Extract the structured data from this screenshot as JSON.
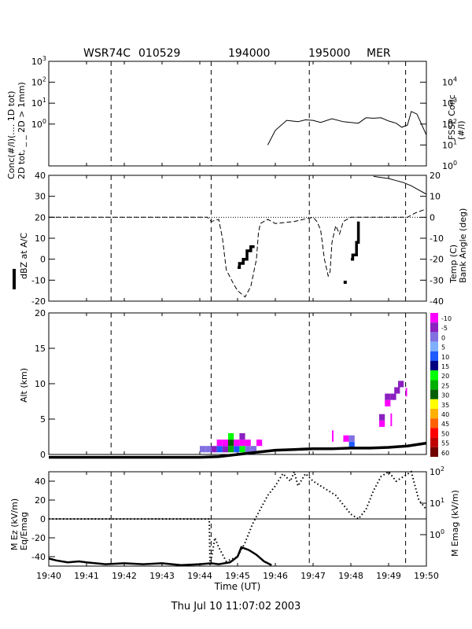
{
  "header": {
    "flight": "WSR74C",
    "date": "010529",
    "start_time": "194000",
    "end_time": "195000",
    "location": "MER"
  },
  "footer": {
    "timestamp": "Thu Jul 10 11:07:02 2003"
  },
  "colors": {
    "stroke": "#000000",
    "temp_line": "#000000"
  },
  "chart_data": [
    {
      "id": "concentration",
      "type": "line",
      "title": "",
      "ylabel_left": [
        "Conc(#/l)(.... 1D tot)",
        "2D tot, _ _ 2D > 1mm)"
      ],
      "ylabel_right": [
        "FSSP Conc",
        "(#/l)"
      ],
      "x_range": [
        0,
        10
      ],
      "y_left": {
        "scale": "log",
        "range": [
          0.01,
          1000
        ],
        "ticks": [
          "10^3",
          "10^2",
          "10^1",
          "10^0"
        ],
        "tick_values": [
          1000,
          100,
          10,
          1
        ]
      },
      "y_right": {
        "scale": "log",
        "range": [
          1,
          100000
        ],
        "ticks": [
          "10^4",
          "10^3",
          "10^2",
          "10^1",
          "10^0"
        ],
        "tick_values": [
          10000,
          1000,
          100,
          10,
          1
        ]
      },
      "series": [
        {
          "axis": "right",
          "x": [
            5.8,
            6.0,
            6.3,
            6.6,
            6.8,
            7.0,
            7.2,
            7.5,
            7.8,
            8.0,
            8.2,
            8.4,
            8.6,
            8.8,
            9.0,
            9.2,
            9.35,
            9.5,
            9.6,
            9.75,
            9.85,
            10.0
          ],
          "y": [
            10,
            50,
            150,
            130,
            160,
            150,
            120,
            180,
            130,
            120,
            110,
            200,
            190,
            200,
            140,
            110,
            70,
            90,
            400,
            300,
            120,
            30
          ]
        }
      ]
    },
    {
      "id": "dbz_temp",
      "type": "line",
      "ylabel_left": "dBZ at A/C",
      "ylabel_right": [
        "Temp (C)",
        "Bank Angle (deg)"
      ],
      "x_range": [
        0,
        10
      ],
      "y_left": {
        "range": [
          -20,
          40
        ],
        "ticks": [
          "40",
          "30",
          "20",
          "10",
          "0",
          "-10",
          "-20"
        ],
        "tick_values": [
          40,
          30,
          20,
          10,
          0,
          -10,
          -20
        ]
      },
      "y_right": {
        "range": [
          -40,
          20
        ],
        "ticks": [
          "20",
          "10",
          "0",
          "-10",
          "-20",
          "-30",
          "-40"
        ],
        "tick_values": [
          20,
          10,
          0,
          -10,
          -20,
          -30,
          -40
        ]
      },
      "temp": {
        "x": [
          8.6,
          8.8,
          9.0,
          9.2,
          9.4,
          9.6,
          9.8,
          10.0
        ],
        "y": [
          19.5,
          19.0,
          18.5,
          17.5,
          16.5,
          15.0,
          13.0,
          11.0
        ]
      },
      "bank_angle": {
        "x": [
          0,
          4.2,
          4.3,
          4.5,
          4.6,
          4.7,
          4.9,
          5.0,
          5.2,
          5.35,
          5.5,
          5.55,
          5.6,
          5.8,
          6.0,
          6.5,
          7.0,
          7.1,
          7.2,
          7.3,
          7.4,
          7.45,
          7.5,
          7.6,
          7.7,
          7.8,
          8.0,
          8.5,
          9.0,
          9.5,
          9.7,
          10.0
        ],
        "y": [
          0,
          0,
          -2,
          -1,
          -10,
          -25,
          -32,
          -35,
          -38,
          -33,
          -20,
          -8,
          -3,
          -1,
          -3,
          -2,
          0,
          -2,
          -6,
          -20,
          -28,
          -26,
          -12,
          -4,
          -8,
          -2,
          0,
          0,
          0,
          0,
          2,
          4
        ]
      },
      "dbz_segments": [
        {
          "x": [
            5.0,
            5.05,
            5.05,
            5.15,
            5.15,
            5.25,
            5.25,
            5.35,
            5.35,
            5.45
          ],
          "y": [
            -4,
            -4,
            -2,
            -2,
            0,
            0,
            4,
            4,
            6,
            6
          ]
        },
        {
          "x": [
            8.0,
            8.05,
            8.05,
            8.15,
            8.15,
            8.2,
            8.2
          ],
          "y": [
            0,
            0,
            2,
            2,
            8,
            8,
            18
          ]
        }
      ],
      "dbz_dots": [
        {
          "x": 7.85,
          "y": -11
        }
      ]
    },
    {
      "id": "altitude",
      "type": "heatmap",
      "ylabel": "Alt (km)",
      "x_range": [
        0,
        10
      ],
      "y_range": [
        0,
        20
      ],
      "y_ticks": [
        0,
        5,
        10,
        15,
        20
      ],
      "colorbar": {
        "labels": [
          "-10",
          "-5",
          "0",
          "5",
          "10",
          "15",
          "20",
          "25",
          "30",
          "35",
          "40",
          "45",
          "50",
          "55",
          "60"
        ],
        "colors": [
          "#ff00ff",
          "#8a20c0",
          "#8070e0",
          "#7fb0ff",
          "#1e5aff",
          "#000080",
          "#00ff00",
          "#00b000",
          "#006000",
          "#ffff00",
          "#ffb000",
          "#ff6000",
          "#ff0000",
          "#c00000",
          "#700000"
        ]
      },
      "cells": [
        {
          "x": 4.0,
          "y": 0.3,
          "w": 0.15,
          "h": 0.9,
          "c": "#8070e0"
        },
        {
          "x": 4.15,
          "y": 0.3,
          "w": 0.15,
          "h": 0.9,
          "c": "#8070e0"
        },
        {
          "x": 4.3,
          "y": 0.3,
          "w": 0.15,
          "h": 0.9,
          "c": "#8a20c0"
        },
        {
          "x": 4.45,
          "y": 0.3,
          "w": 0.15,
          "h": 0.9,
          "c": "#1e5aff"
        },
        {
          "x": 4.6,
          "y": 0.3,
          "w": 0.15,
          "h": 0.9,
          "c": "#8a20c0"
        },
        {
          "x": 4.75,
          "y": 0.3,
          "w": 0.15,
          "h": 0.9,
          "c": "#00b000"
        },
        {
          "x": 4.9,
          "y": 0.3,
          "w": 0.15,
          "h": 0.9,
          "c": "#1e5aff"
        },
        {
          "x": 5.05,
          "y": 0.3,
          "w": 0.15,
          "h": 0.9,
          "c": "#00ff00"
        },
        {
          "x": 5.2,
          "y": 0.3,
          "w": 0.15,
          "h": 0.9,
          "c": "#8070e0"
        },
        {
          "x": 5.35,
          "y": 0.3,
          "w": 0.15,
          "h": 0.9,
          "c": "#8070e0"
        },
        {
          "x": 4.45,
          "y": 1.2,
          "w": 0.15,
          "h": 0.9,
          "c": "#ff00ff"
        },
        {
          "x": 4.6,
          "y": 1.2,
          "w": 0.15,
          "h": 0.9,
          "c": "#ff00ff"
        },
        {
          "x": 4.75,
          "y": 1.2,
          "w": 0.15,
          "h": 0.9,
          "c": "#006000"
        },
        {
          "x": 4.9,
          "y": 1.2,
          "w": 0.15,
          "h": 0.9,
          "c": "#ff00ff"
        },
        {
          "x": 5.05,
          "y": 1.2,
          "w": 0.15,
          "h": 0.9,
          "c": "#ff00ff"
        },
        {
          "x": 5.2,
          "y": 1.2,
          "w": 0.15,
          "h": 0.9,
          "c": "#ff00ff"
        },
        {
          "x": 5.5,
          "y": 1.2,
          "w": 0.15,
          "h": 0.9,
          "c": "#ff00ff"
        },
        {
          "x": 4.75,
          "y": 2.1,
          "w": 0.15,
          "h": 0.9,
          "c": "#00ff00"
        },
        {
          "x": 5.05,
          "y": 2.1,
          "w": 0.15,
          "h": 0.9,
          "c": "#8a20c0"
        },
        {
          "x": 7.5,
          "y": 1.8,
          "w": 0.04,
          "h": 1.6,
          "c": "#ff00ff"
        },
        {
          "x": 7.95,
          "y": 0.9,
          "w": 0.15,
          "h": 0.9,
          "c": "#1e5aff"
        },
        {
          "x": 7.8,
          "y": 1.8,
          "w": 0.15,
          "h": 0.9,
          "c": "#ff00ff"
        },
        {
          "x": 7.95,
          "y": 1.8,
          "w": 0.15,
          "h": 0.9,
          "c": "#8070e0"
        },
        {
          "x": 8.75,
          "y": 3.9,
          "w": 0.15,
          "h": 0.9,
          "c": "#ff00ff"
        },
        {
          "x": 8.75,
          "y": 4.8,
          "w": 0.15,
          "h": 0.9,
          "c": "#8a20c0"
        },
        {
          "x": 9.05,
          "y": 4.0,
          "w": 0.04,
          "h": 1.8,
          "c": "#ff00ff"
        },
        {
          "x": 8.9,
          "y": 6.8,
          "w": 0.15,
          "h": 0.9,
          "c": "#ff00ff"
        },
        {
          "x": 8.9,
          "y": 7.7,
          "w": 0.15,
          "h": 0.9,
          "c": "#8a20c0"
        },
        {
          "x": 9.05,
          "y": 7.7,
          "w": 0.15,
          "h": 0.9,
          "c": "#8a20c0"
        },
        {
          "x": 9.15,
          "y": 8.6,
          "w": 0.15,
          "h": 0.9,
          "c": "#8a20c0"
        },
        {
          "x": 9.25,
          "y": 9.5,
          "w": 0.15,
          "h": 0.9,
          "c": "#8a20c0"
        },
        {
          "x": 9.45,
          "y": 8.2,
          "w": 0.04,
          "h": 1.2,
          "c": "#ff00ff"
        }
      ],
      "flight_altitude": {
        "x": [
          0,
          4.0,
          4.5,
          5.0,
          5.5,
          6.0,
          6.5,
          7.0,
          7.5,
          8.0,
          8.5,
          9.0,
          9.5,
          10.0
        ],
        "y": [
          -0.4,
          -0.4,
          -0.3,
          0.0,
          0.3,
          0.6,
          0.7,
          0.8,
          0.8,
          0.9,
          0.9,
          1.0,
          1.2,
          1.6
        ]
      }
    },
    {
      "id": "electric_field",
      "type": "line",
      "ylabel_left": [
        "M Ez (kV/m)",
        "Eq/Emag"
      ],
      "ylabel_right": "M Emag (kV/m)",
      "xlabel": "Time (UT)",
      "x_range": [
        0,
        10
      ],
      "x_ticks": [
        "19:40",
        "19:41",
        "19:42",
        "19:43",
        "19:44",
        "19:45",
        "19:46",
        "19:47",
        "19:48",
        "19:49",
        "19:50"
      ],
      "y_left": {
        "range": [
          -50,
          50
        ],
        "ticks": [
          "40",
          "20",
          "0",
          "-20",
          "-40"
        ],
        "tick_values": [
          40,
          20,
          0,
          -20,
          -40
        ]
      },
      "y_right": {
        "scale": "log",
        "range": [
          0.1,
          100
        ],
        "ticks": [
          "10^2",
          "10^1",
          "10^0"
        ],
        "tick_values": [
          100,
          10,
          1
        ]
      },
      "ez": {
        "x": [
          0,
          0.2,
          0.5,
          0.8,
          1.0,
          1.5,
          2.0,
          2.5,
          3.0,
          3.5,
          4.0,
          4.3,
          4.5,
          4.8,
          5.0,
          5.1,
          5.3,
          5.5,
          5.7,
          5.9
        ],
        "y": [
          -42,
          -44,
          -46,
          -45,
          -46,
          -48,
          -47,
          -48,
          -47,
          -49,
          -48,
          -47,
          -48,
          -46,
          -40,
          -30,
          -33,
          -38,
          -45,
          -49
        ]
      },
      "eq_emag": {
        "x": [
          0,
          1.0,
          2.0,
          3.0,
          4.0,
          4.25,
          4.27,
          4.4,
          4.5,
          4.7,
          5.0,
          5.2,
          5.4,
          5.6,
          5.8,
          6.0,
          6.2,
          6.4,
          6.5,
          6.6,
          6.8,
          7.0,
          7.2,
          7.4,
          7.6,
          7.8,
          8.0,
          8.2,
          8.4,
          8.6,
          8.8,
          9.0,
          9.2,
          9.4,
          9.6,
          9.8,
          10.0
        ],
        "y": [
          0,
          0,
          0,
          0,
          0,
          0,
          -50,
          -20,
          -30,
          -45,
          -40,
          -25,
          -5,
          10,
          25,
          35,
          48,
          40,
          50,
          35,
          48,
          40,
          35,
          30,
          25,
          15,
          5,
          0,
          10,
          30,
          45,
          50,
          40,
          45,
          50,
          20,
          10
        ]
      }
    }
  ]
}
